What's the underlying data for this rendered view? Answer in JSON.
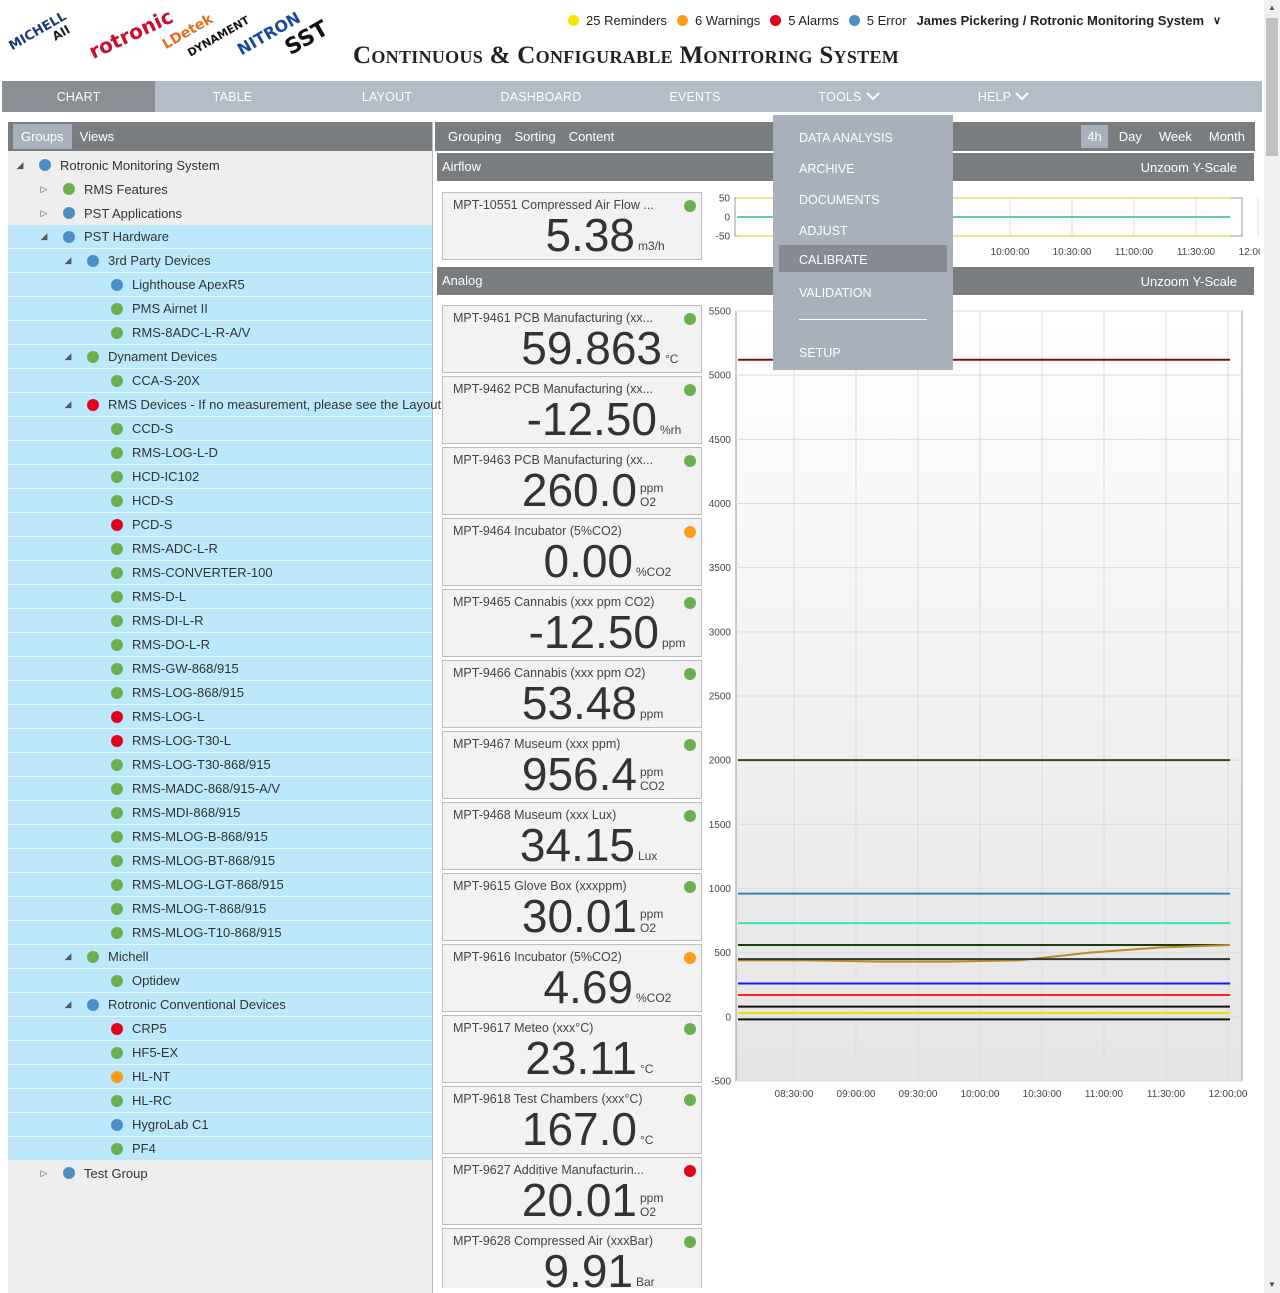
{
  "header": {
    "title": "Continuous & Configurable Monitoring System",
    "logos": [
      {
        "name": "michell-logo",
        "text": "MICHELL"
      },
      {
        "name": "analytical-industries-logo",
        "text": "AII"
      },
      {
        "name": "rotronic-logo",
        "text": "rotronic"
      },
      {
        "name": "ldetek-logo",
        "text": "LDetek"
      },
      {
        "name": "dynament-logo",
        "text": "DYNAMENT"
      },
      {
        "name": "nitron-logo",
        "text": "NITRON"
      },
      {
        "name": "sst-logo",
        "text": "SST"
      }
    ],
    "status": [
      {
        "name": "reminders",
        "label": "25 Reminders",
        "color": "#f5e600"
      },
      {
        "name": "warnings",
        "label": "6 Warnings",
        "color": "#ff9a1a"
      },
      {
        "name": "alarms",
        "label": "5 Alarms",
        "color": "#e3001b"
      },
      {
        "name": "errors",
        "label": "5 Error",
        "color": "#4a90c8"
      }
    ],
    "user": "James Pickering / Rotronic Monitoring System"
  },
  "nav": {
    "tabs": [
      {
        "name": "chart",
        "label": "CHART",
        "active": true
      },
      {
        "name": "table",
        "label": "TABLE"
      },
      {
        "name": "layout",
        "label": "LAYOUT"
      },
      {
        "name": "dashboard",
        "label": "DASHBOARD"
      },
      {
        "name": "events",
        "label": "EVENTS"
      },
      {
        "name": "tools",
        "label": "TOOLS",
        "chevron": true
      },
      {
        "name": "help",
        "label": "HELP",
        "chevron": true
      }
    ]
  },
  "tools_menu": {
    "items": [
      {
        "name": "data-analysis",
        "label": "DATA ANALYSIS"
      },
      {
        "name": "archive",
        "label": "ARCHIVE"
      },
      {
        "name": "documents",
        "label": "DOCUMENTS"
      },
      {
        "name": "adjust",
        "label": "ADJUST"
      },
      {
        "name": "calibrate",
        "label": "CALIBRATE",
        "active": true
      },
      {
        "name": "validation",
        "label": "VALIDATION"
      },
      {
        "name": "setup",
        "label": "SETUP"
      }
    ]
  },
  "left_panel": {
    "tabs": [
      {
        "label": "Groups",
        "active": true
      },
      {
        "label": "Views"
      }
    ],
    "tree": [
      {
        "label": "Rotronic Monitoring System",
        "level": 0,
        "status": "blue",
        "toggle": "open"
      },
      {
        "label": "RMS Features",
        "level": 1,
        "status": "green",
        "toggle": "closed"
      },
      {
        "label": "PST Applications",
        "level": 1,
        "status": "blue",
        "toggle": "closed"
      },
      {
        "label": "PST Hardware",
        "level": 1,
        "status": "blue",
        "toggle": "open",
        "sel": true
      },
      {
        "label": "3rd Party Devices",
        "level": 2,
        "status": "blue",
        "toggle": "open",
        "sel": true
      },
      {
        "label": "Lighthouse ApexR5",
        "level": 3,
        "status": "blue",
        "sel": true
      },
      {
        "label": "PMS Airnet II",
        "level": 3,
        "status": "green",
        "sel": true
      },
      {
        "label": "RMS-8ADC-L-R-A/V",
        "level": 3,
        "status": "green",
        "sel": true
      },
      {
        "label": "Dynament Devices",
        "level": 2,
        "status": "green",
        "toggle": "open",
        "sel": true
      },
      {
        "label": "CCA-S-20X",
        "level": 3,
        "status": "green",
        "sel": true
      },
      {
        "label": "RMS Devices - If no measurement, please see the Layout",
        "level": 2,
        "status": "red",
        "toggle": "open",
        "sel": true
      },
      {
        "label": "CCD-S",
        "level": 3,
        "status": "green",
        "sel": true
      },
      {
        "label": "RMS-LOG-L-D",
        "level": 3,
        "status": "green",
        "sel": true
      },
      {
        "label": "HCD-IC102",
        "level": 3,
        "status": "green",
        "sel": true
      },
      {
        "label": "HCD-S",
        "level": 3,
        "status": "green",
        "sel": true
      },
      {
        "label": "PCD-S",
        "level": 3,
        "status": "red",
        "sel": true
      },
      {
        "label": "RMS-ADC-L-R",
        "level": 3,
        "status": "green",
        "sel": true
      },
      {
        "label": "RMS-CONVERTER-100",
        "level": 3,
        "status": "green",
        "sel": true
      },
      {
        "label": "RMS-D-L",
        "level": 3,
        "status": "green",
        "sel": true
      },
      {
        "label": "RMS-DI-L-R",
        "level": 3,
        "status": "green",
        "sel": true
      },
      {
        "label": "RMS-DO-L-R",
        "level": 3,
        "status": "green",
        "sel": true
      },
      {
        "label": "RMS-GW-868/915",
        "level": 3,
        "status": "green",
        "sel": true
      },
      {
        "label": "RMS-LOG-868/915",
        "level": 3,
        "status": "green",
        "sel": true
      },
      {
        "label": "RMS-LOG-L",
        "level": 3,
        "status": "red",
        "sel": true
      },
      {
        "label": "RMS-LOG-T30-L",
        "level": 3,
        "status": "red",
        "sel": true
      },
      {
        "label": "RMS-LOG-T30-868/915",
        "level": 3,
        "status": "green",
        "sel": true
      },
      {
        "label": "RMS-MADC-868/915-A/V",
        "level": 3,
        "status": "green",
        "sel": true
      },
      {
        "label": "RMS-MDI-868/915",
        "level": 3,
        "status": "green",
        "sel": true
      },
      {
        "label": "RMS-MLOG-B-868/915",
        "level": 3,
        "status": "green",
        "sel": true
      },
      {
        "label": "RMS-MLOG-BT-868/915",
        "level": 3,
        "status": "green",
        "sel": true
      },
      {
        "label": "RMS-MLOG-LGT-868/915",
        "level": 3,
        "status": "green",
        "sel": true
      },
      {
        "label": "RMS-MLOG-T-868/915",
        "level": 3,
        "status": "green",
        "sel": true
      },
      {
        "label": "RMS-MLOG-T10-868/915",
        "level": 3,
        "status": "green",
        "sel": true
      },
      {
        "label": "Michell",
        "level": 2,
        "status": "green",
        "toggle": "open",
        "sel": true
      },
      {
        "label": "Optidew",
        "level": 3,
        "status": "green",
        "sel": true
      },
      {
        "label": "Rotronic Conventional Devices",
        "level": 2,
        "status": "blue",
        "toggle": "open",
        "sel": true
      },
      {
        "label": "CRP5",
        "level": 3,
        "status": "red",
        "sel": true
      },
      {
        "label": "HF5-EX",
        "level": 3,
        "status": "green",
        "sel": true
      },
      {
        "label": "HL-NT",
        "level": 3,
        "status": "orange",
        "sel": true
      },
      {
        "label": "HL-RC",
        "level": 3,
        "status": "green",
        "sel": true
      },
      {
        "label": "HygroLab C1",
        "level": 3,
        "status": "blue",
        "sel": true
      },
      {
        "label": "PF4",
        "level": 3,
        "status": "green",
        "sel": true
      },
      {
        "label": "Test Group",
        "level": 1,
        "status": "blue",
        "toggle": "closed"
      }
    ]
  },
  "toolbar": {
    "left": [
      "Grouping",
      "Sorting",
      "Content"
    ],
    "ranges": [
      {
        "label": "4h",
        "active": true
      },
      {
        "label": "Day"
      },
      {
        "label": "Week"
      },
      {
        "label": "Month"
      }
    ]
  },
  "sections": {
    "airflow": {
      "name": "Airflow",
      "unzoom": "Unzoom",
      "yscale": "Y-Scale"
    },
    "analog": {
      "name": "Analog",
      "unzoom": "Unzoom",
      "yscale": "Y-Scale"
    }
  },
  "tiles": [
    {
      "name": "MPT-10551 Compressed Air Flow ...",
      "value": "5.38",
      "unit": [
        "m3/h"
      ],
      "status": "green"
    },
    {
      "name": "MPT-9461 PCB Manufacturing (xx...",
      "value": "59.863",
      "unit": [
        "°C"
      ],
      "status": "green"
    },
    {
      "name": "MPT-9462 PCB Manufacturing (xx...",
      "value": "-12.50",
      "unit": [
        "%rh"
      ],
      "status": "green"
    },
    {
      "name": "MPT-9463 PCB Manufacturing (xx...",
      "value": "260.0",
      "unit": [
        "ppm",
        "O2"
      ],
      "status": "green"
    },
    {
      "name": "MPT-9464 Incubator (5%CO2)",
      "value": "0.00",
      "unit": [
        "%CO2"
      ],
      "status": "orange"
    },
    {
      "name": "MPT-9465 Cannabis (xxx ppm CO2)",
      "value": "-12.50",
      "unit": [
        "ppm"
      ],
      "status": "green"
    },
    {
      "name": "MPT-9466 Cannabis (xxx ppm O2)",
      "value": "53.48",
      "unit": [
        "ppm"
      ],
      "status": "green"
    },
    {
      "name": "MPT-9467 Museum (xxx ppm)",
      "value": "956.4",
      "unit": [
        "ppm",
        "CO2"
      ],
      "status": "green"
    },
    {
      "name": "MPT-9468 Museum (xxx Lux)",
      "value": "34.15",
      "unit": [
        "Lux"
      ],
      "status": "green"
    },
    {
      "name": "MPT-9615 Glove Box (xxxppm)",
      "value": "30.01",
      "unit": [
        "ppm",
        "O2"
      ],
      "status": "green"
    },
    {
      "name": "MPT-9616 Incubator (5%CO2)",
      "value": "4.69",
      "unit": [
        "%CO2"
      ],
      "status": "orange"
    },
    {
      "name": "MPT-9617 Meteo (xxx°C)",
      "value": "23.11",
      "unit": [
        "°C"
      ],
      "status": "green"
    },
    {
      "name": "MPT-9618 Test Chambers (xxx°C)",
      "value": "167.0",
      "unit": [
        "°C"
      ],
      "status": "green"
    },
    {
      "name": "MPT-9627 Additive Manufacturin...",
      "value": "20.01",
      "unit": [
        "ppm",
        "O2"
      ],
      "status": "red"
    },
    {
      "name": "MPT-9628 Compressed Air (xxxBar)",
      "value": "9.91",
      "unit": [
        "Bar"
      ],
      "status": "green"
    }
  ],
  "colors": {
    "green": "#6ab04c",
    "blue": "#4a90c8",
    "red": "#e3001b",
    "orange": "#ff9a1a"
  },
  "chart_data": [
    {
      "type": "line",
      "name": "airflow",
      "x": [
        "08:30:00",
        "09:00:00",
        "09:30:00",
        "10:00:00",
        "10:30:00",
        "11:00:00",
        "11:30:00",
        "12:00:00"
      ],
      "ylim": [
        -50,
        50
      ],
      "yticks": [
        "50",
        "0",
        "-50"
      ],
      "xticks_visible": [
        "10:00:00",
        "10:30:00",
        "11:00:00",
        "11:30:00",
        "12:00:00"
      ],
      "series": [
        {
          "color": "#2ab79a",
          "values": [
            0,
            0,
            0,
            0,
            0,
            0,
            0,
            0
          ]
        },
        {
          "color": "#e8df6a",
          "values": [
            50,
            50,
            50,
            50,
            50,
            50,
            50,
            50
          ]
        },
        {
          "color": "#e8df6a",
          "values": [
            -50,
            -50,
            -50,
            -50,
            -50,
            -50,
            -50,
            -50
          ]
        }
      ]
    },
    {
      "type": "line",
      "name": "analog",
      "x": [
        "08:30:00",
        "09:00:00",
        "09:30:00",
        "10:00:00",
        "10:30:00",
        "11:00:00",
        "11:30:00",
        "12:00:00"
      ],
      "ylim": [
        -500,
        5500
      ],
      "yticks": [
        "5500",
        "5000",
        "4500",
        "4000",
        "3500",
        "3000",
        "2500",
        "2000",
        "1500",
        "1000",
        "500",
        "0",
        "-500"
      ],
      "series": [
        {
          "color": "#7a1010",
          "values": [
            5120,
            5120,
            5120,
            5120,
            5120,
            5120,
            5120,
            5120
          ]
        },
        {
          "color": "#2d4a10",
          "values": [
            2000,
            2000,
            2000,
            2000,
            2000,
            2000,
            2000,
            2000
          ]
        },
        {
          "color": "#2e86c1",
          "values": [
            960,
            960,
            960,
            960,
            960,
            960,
            960,
            960
          ]
        },
        {
          "color": "#40e0c0",
          "values": [
            730,
            730,
            730,
            730,
            730,
            730,
            730,
            730
          ]
        },
        {
          "color": "#1a3a10",
          "values": [
            560,
            560,
            560,
            560,
            560,
            560,
            560,
            560
          ]
        },
        {
          "color": "#c08a20",
          "values": [
            440,
            440,
            430,
            430,
            440,
            500,
            540,
            560
          ]
        },
        {
          "color": "#333333",
          "values": [
            450,
            450,
            450,
            450,
            450,
            450,
            450,
            450
          ]
        },
        {
          "color": "#1a1aff",
          "values": [
            260,
            260,
            260,
            260,
            260,
            260,
            260,
            260
          ]
        },
        {
          "color": "#ff2020",
          "values": [
            170,
            170,
            170,
            170,
            170,
            170,
            170,
            170
          ]
        },
        {
          "color": "#111111",
          "values": [
            80,
            80,
            80,
            80,
            80,
            80,
            80,
            80
          ]
        },
        {
          "color": "#e8e000",
          "values": [
            30,
            30,
            30,
            30,
            30,
            30,
            30,
            30
          ]
        },
        {
          "color": "#111111",
          "values": [
            -20,
            -20,
            -20,
            -20,
            -20,
            -20,
            -20,
            -20
          ]
        }
      ]
    }
  ]
}
